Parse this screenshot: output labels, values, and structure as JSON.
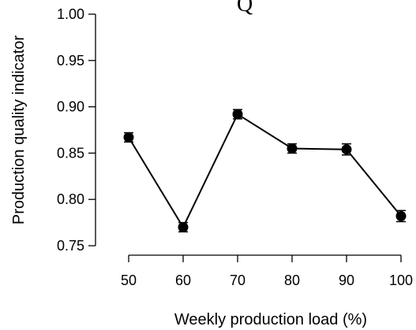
{
  "chart_data": {
    "type": "line",
    "title": "Q",
    "xlabel": "Weekly production load (%)",
    "ylabel": "Production quality indicator",
    "x": [
      50,
      60,
      70,
      80,
      90,
      100
    ],
    "x_tick_labels": [
      "50",
      "60",
      "70",
      "80",
      "90",
      "100"
    ],
    "y_ticks": [
      0.75,
      0.8,
      0.85,
      0.9,
      0.95,
      1.0
    ],
    "y_tick_labels": [
      "0.75",
      "0.80",
      "0.85",
      "0.90",
      "0.95",
      "1.00"
    ],
    "ylim": [
      0.75,
      1.0
    ],
    "xlim": [
      50,
      100
    ],
    "series": [
      {
        "values": [
          0.867,
          0.77,
          0.892,
          0.855,
          0.854,
          0.782
        ],
        "errors": [
          0.005,
          0.005,
          0.005,
          0.005,
          0.006,
          0.006
        ]
      }
    ],
    "colors": {
      "line": "#000000",
      "marker": "#000000"
    },
    "grid": false
  }
}
